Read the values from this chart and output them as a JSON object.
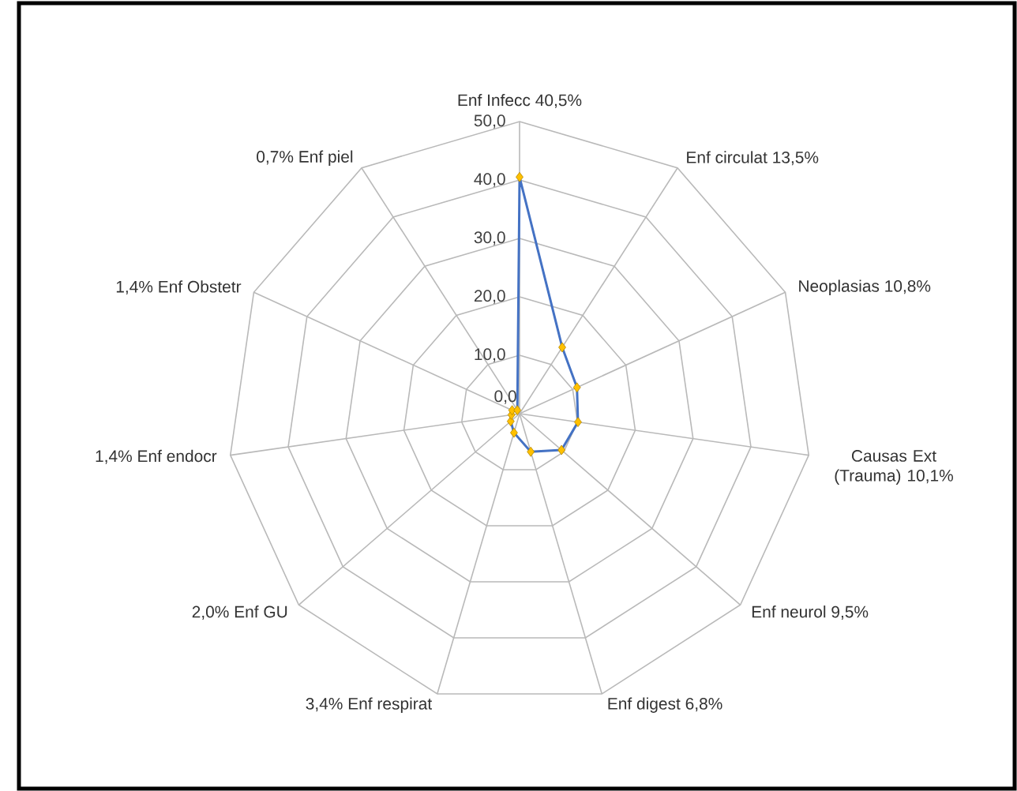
{
  "chart_data": {
    "type": "radar",
    "categories": [
      "Enf Infecc 40,5%",
      "Enf circulat  13,5%",
      "Neoplasias 10,8%",
      "Causas Ext (Trauma) 10,1%",
      "Enf neurol 9,5%",
      "Enf digest  6,8%",
      "3,4% Enf respirat",
      "2,0% Enf GU",
      "1,4%  Enf endocr",
      "1,4% Enf Obstetr",
      "0,7% Enf piel"
    ],
    "values": [
      40.5,
      13.5,
      10.8,
      10.1,
      9.5,
      6.8,
      3.4,
      2.0,
      1.4,
      1.4,
      0.7
    ],
    "color": "#4472c4",
    "colors": [
      "#ffc000",
      "#ffc000",
      "#ffc000",
      "#ffc000",
      "#ffc000",
      "#ffc000",
      "#ffc000",
      "#ffc000",
      "#ffc000",
      "#ffc000",
      "#ffc000"
    ],
    "ylim": [
      0,
      50
    ],
    "yticks": [
      {
        "value": 0,
        "label": "0,0"
      },
      {
        "value": 10,
        "label": "10,0"
      },
      {
        "value": 20,
        "label": "20,0"
      },
      {
        "value": 30,
        "label": "30,0"
      },
      {
        "value": 40,
        "label": "40,0"
      },
      {
        "value": 50,
        "label": "50,0"
      }
    ],
    "grid": true,
    "marker": "diamond"
  }
}
